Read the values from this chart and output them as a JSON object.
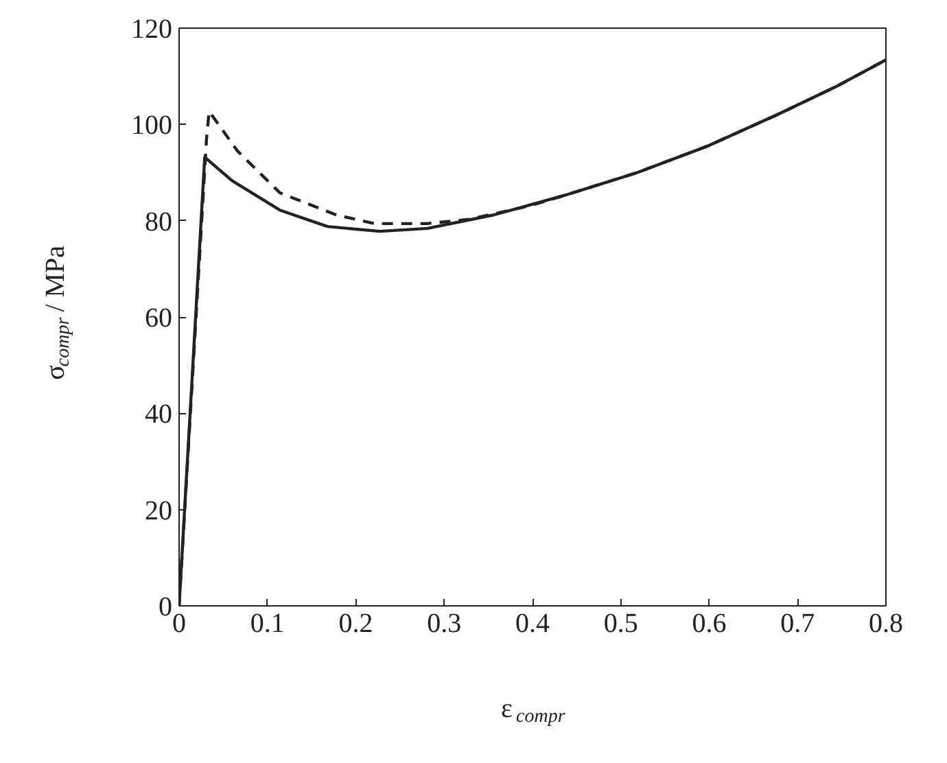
{
  "chart_data": {
    "type": "line",
    "xlabel": "ε$_{compr}$",
    "ylabel": "σ$_{compr}$ / MPa",
    "xlim": [
      0,
      0.8
    ],
    "ylim": [
      0,
      120
    ],
    "xticks": [
      0,
      0.1,
      0.2,
      0.3,
      0.4,
      0.5,
      0.6,
      0.7,
      0.8
    ],
    "yticks": [
      0,
      20,
      40,
      60,
      80,
      100,
      120
    ],
    "grid": false,
    "series": [
      {
        "color": "#222222",
        "line_style": "dashed",
        "x": [
          0,
          0.031,
          0.034,
          0.066,
          0.114,
          0.178,
          0.221,
          0.28,
          0.329,
          0.399,
          0.437,
          0.517,
          0.598,
          0.678,
          0.743,
          0.8
        ],
        "values": [
          0,
          97,
          102.7,
          94.5,
          85.8,
          81.2,
          79.4,
          79.4,
          80.3,
          83.2,
          85.3,
          89.9,
          95.5,
          102.1,
          107.8,
          113.4
        ]
      },
      {
        "color": "#222222",
        "line_style": "solid",
        "x": [
          0,
          0.029,
          0.06,
          0.114,
          0.168,
          0.227,
          0.281,
          0.356,
          0.437,
          0.517,
          0.598,
          0.678,
          0.743,
          0.8
        ],
        "values": [
          0,
          93.2,
          88.3,
          82.2,
          78.8,
          77.8,
          78.4,
          81.2,
          85.3,
          89.9,
          95.5,
          102.1,
          107.8,
          113.4
        ]
      }
    ]
  }
}
